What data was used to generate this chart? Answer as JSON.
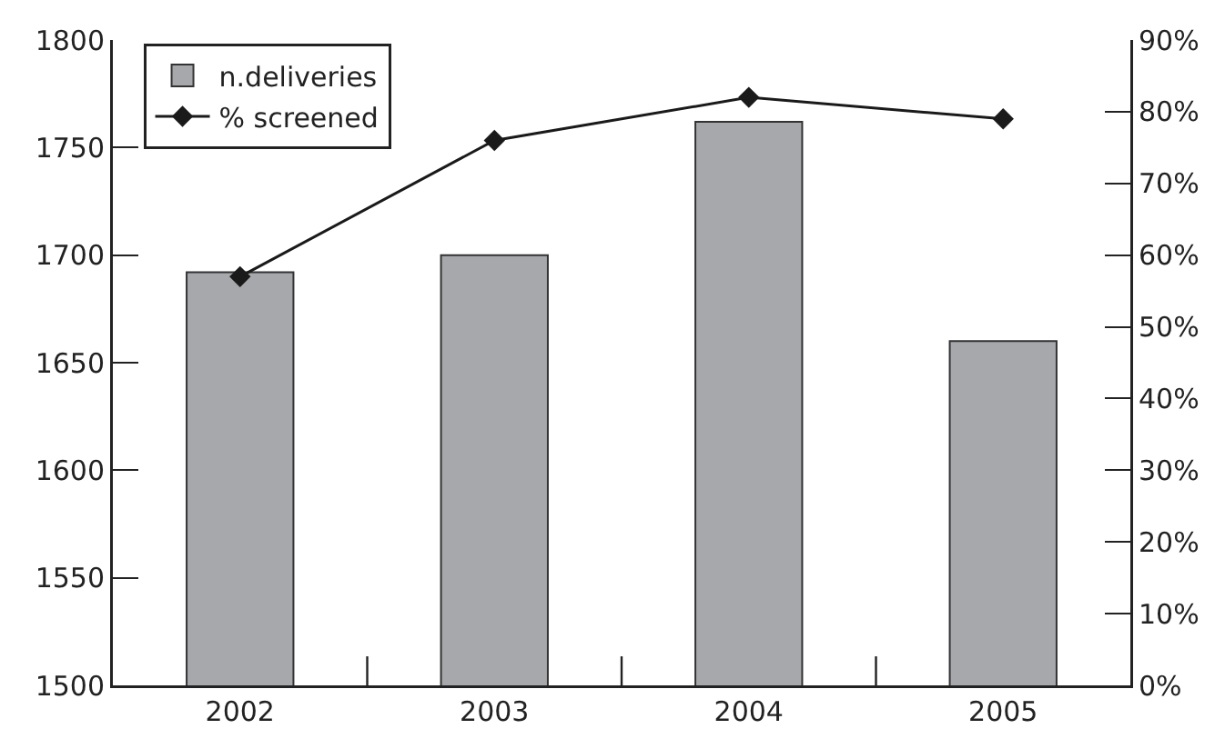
{
  "chart_data": {
    "type": "bar",
    "categories": [
      "2002",
      "2003",
      "2004",
      "2005"
    ],
    "series": [
      {
        "name": "n.deliveries",
        "color": "#a7a8ac",
        "values": [
          1692,
          1700,
          1762,
          1660
        ]
      },
      {
        "name": "% screened",
        "type": "line",
        "axis": "y2",
        "color": "#1a1a1a",
        "marker": "diamond",
        "values": [
          57,
          76,
          82,
          79
        ]
      }
    ],
    "ylim": [
      1500,
      1800
    ],
    "yticks": [
      1500,
      1550,
      1600,
      1650,
      1700,
      1750,
      1800
    ],
    "y2lim": [
      0,
      90
    ],
    "y2ticks": [
      {
        "value": 0,
        "label": "0%"
      },
      {
        "value": 10,
        "label": "10%"
      },
      {
        "value": 20,
        "label": "20%"
      },
      {
        "value": 30,
        "label": "30%"
      },
      {
        "value": 40,
        "label": "40%"
      },
      {
        "value": 50,
        "label": "50%"
      },
      {
        "value": 60,
        "label": "60%"
      },
      {
        "value": 70,
        "label": "70%"
      },
      {
        "value": 80,
        "label": "80%"
      },
      {
        "value": 90,
        "label": "90%"
      }
    ],
    "grid": false,
    "legend": "top left"
  }
}
